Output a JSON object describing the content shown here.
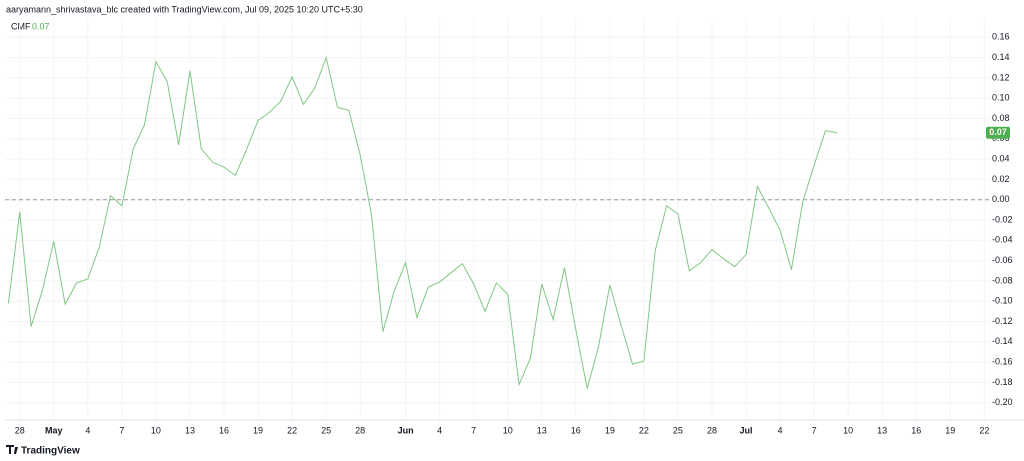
{
  "header": "aaryamann_shrivastava_blc created with TradingView.com, Jul 09, 2025 10:20 UTC+5:30",
  "footer": "TradingView",
  "chart_data": {
    "type": "line",
    "x": [
      -1,
      0,
      1,
      2,
      3,
      4,
      5,
      6,
      7,
      8,
      9,
      10,
      11,
      12,
      13,
      14,
      15,
      16,
      17,
      18,
      19,
      20,
      21,
      22,
      23,
      24,
      25,
      26,
      27,
      28,
      29,
      30,
      31,
      32,
      33,
      34,
      35,
      36,
      37,
      38,
      39,
      40,
      41,
      42,
      43,
      44,
      45,
      46,
      47,
      48,
      49,
      50,
      51,
      52,
      53,
      54,
      55,
      56,
      57,
      58,
      59,
      60,
      61,
      62,
      63,
      64,
      65,
      66,
      67,
      68,
      69,
      70,
      71,
      72
    ],
    "series": [
      {
        "name": "CMF",
        "color": "#81c784",
        "value_label": "0.07",
        "values": [
          -0.102,
          -0.012,
          -0.125,
          -0.089,
          -0.041,
          -0.103,
          -0.082,
          -0.078,
          -0.047,
          0.004,
          -0.006,
          0.05,
          0.074,
          0.136,
          0.116,
          0.054,
          0.127,
          0.05,
          0.037,
          0.032,
          0.024,
          0.05,
          0.078,
          0.086,
          0.097,
          0.121,
          0.094,
          0.11,
          0.14,
          0.091,
          0.088,
          0.044,
          -0.015,
          -0.13,
          -0.09,
          -0.062,
          -0.116,
          -0.086,
          -0.081,
          -0.072,
          -0.063,
          -0.083,
          -0.11,
          -0.082,
          -0.093,
          -0.182,
          -0.156,
          -0.083,
          -0.118,
          -0.067,
          -0.128,
          -0.186,
          -0.145,
          -0.084,
          -0.124,
          -0.162,
          -0.159,
          -0.05,
          -0.006,
          -0.014,
          -0.07,
          -0.062,
          -0.049,
          -0.058,
          -0.066,
          -0.054,
          0.013,
          -0.008,
          -0.03,
          -0.069,
          -0.002,
          0.034,
          0.068,
          0.066
        ]
      }
    ],
    "xlim": [
      -1.3,
      85.5
    ],
    "xticks": [
      {
        "value": 0,
        "label": "28"
      },
      {
        "value": 3,
        "label": "May"
      },
      {
        "value": 6,
        "label": "4"
      },
      {
        "value": 9,
        "label": "7"
      },
      {
        "value": 12,
        "label": "10"
      },
      {
        "value": 15,
        "label": "13"
      },
      {
        "value": 18,
        "label": "16"
      },
      {
        "value": 21,
        "label": "19"
      },
      {
        "value": 24,
        "label": "22"
      },
      {
        "value": 27,
        "label": "25"
      },
      {
        "value": 30,
        "label": "28"
      },
      {
        "value": 34,
        "label": "Jun"
      },
      {
        "value": 37,
        "label": "4"
      },
      {
        "value": 40,
        "label": "7"
      },
      {
        "value": 43,
        "label": "10"
      },
      {
        "value": 46,
        "label": "13"
      },
      {
        "value": 49,
        "label": "16"
      },
      {
        "value": 52,
        "label": "19"
      },
      {
        "value": 55,
        "label": "22"
      },
      {
        "value": 58,
        "label": "25"
      },
      {
        "value": 61,
        "label": "28"
      },
      {
        "value": 64,
        "label": "Jul"
      },
      {
        "value": 67,
        "label": "4"
      },
      {
        "value": 70,
        "label": "7"
      },
      {
        "value": 73,
        "label": "10"
      },
      {
        "value": 76,
        "label": "13"
      },
      {
        "value": 79,
        "label": "16"
      },
      {
        "value": 82,
        "label": "19"
      },
      {
        "value": 85,
        "label": "22"
      }
    ],
    "ylim": [
      -0.217,
      0.179
    ],
    "yticks": [
      {
        "value": 0.16,
        "label": "0.16"
      },
      {
        "value": 0.14,
        "label": "0.14"
      },
      {
        "value": 0.12,
        "label": "0.12"
      },
      {
        "value": 0.1,
        "label": "0.10"
      },
      {
        "value": 0.08,
        "label": "0.08"
      },
      {
        "value": 0.06,
        "label": "0.06"
      },
      {
        "value": 0.04,
        "label": "0.04"
      },
      {
        "value": 0.02,
        "label": "0.02"
      },
      {
        "value": 0,
        "label": "0.00"
      },
      {
        "value": -0.02,
        "label": "-0.02"
      },
      {
        "value": -0.04,
        "label": "-0.04"
      },
      {
        "value": -0.06,
        "label": "-0.06"
      },
      {
        "value": -0.08,
        "label": "-0.08"
      },
      {
        "value": -0.1,
        "label": "-0.10"
      },
      {
        "value": -0.12,
        "label": "-0.12"
      },
      {
        "value": -0.14,
        "label": "-0.14"
      },
      {
        "value": -0.16,
        "label": "-0.16"
      },
      {
        "value": -0.18,
        "label": "-0.18"
      },
      {
        "value": -0.2,
        "label": "-0.20"
      }
    ],
    "grid": true,
    "dashed_line_at": 0
  }
}
